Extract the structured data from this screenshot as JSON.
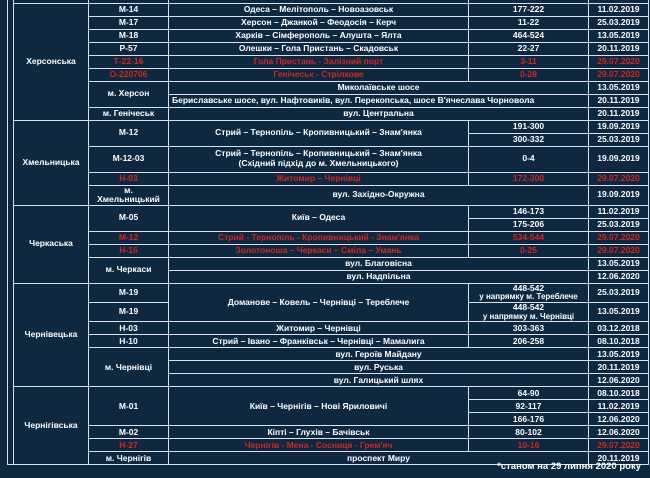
{
  "colors": {
    "background": "#0e2840",
    "table_border": "#d9e2ec",
    "text": "#ffffff",
    "highlight_red": "#d6251c"
  },
  "footer": {
    "note": "*станом на 29 липня 2020 року"
  },
  "sections": [
    {
      "region": "Херсонська",
      "rows": [
        {
          "code": "М-14",
          "route": "Одеса – Мелітополь – Новоазовськ",
          "km": "177-222",
          "date": "11.02.2019"
        },
        {
          "code": "М-17",
          "route": "Херсон – Джанкой – Феодосія – Керч",
          "km": "11-22",
          "date": "25.03.2019"
        },
        {
          "code": "М-18",
          "route": "Харків – Сімферополь – Алушта – Ялта",
          "km": "464-524",
          "date": "13.05.2019"
        },
        {
          "code": "Р-57",
          "route": "Олешки – Гола Пристань – Скадовськ",
          "km": "22-27",
          "date": "20.11.2019"
        },
        {
          "code": "Т-22-16",
          "route": "Гола Пристань - Залізний порт",
          "km": "3-11",
          "date": "29.07.2020",
          "highlight": true
        },
        {
          "code": "О-220706",
          "route": "Генічеськ - Стрілкове",
          "km": "0-28",
          "date": "29.07.2020",
          "highlight": true
        },
        {
          "code": "м. Херсон",
          "route": "Миколаївське шосе",
          "date": "13.05.2019"
        },
        {
          "route": "Бериславське шосе, вул. Нафтовиків, вул. Перекопська, шосе В'ячеслава Чорновола",
          "date": "20.11.2019"
        },
        {
          "code": "м. Генічеськ",
          "route": "вул. Центральна",
          "date": "20.11.2019"
        }
      ]
    },
    {
      "region": "Хмельницька",
      "rows": [
        {
          "code": "М-12",
          "route": "Стрий – Тернопіль – Кропивницький – Знам'янка",
          "km": "191-300",
          "date": "19.09.2019"
        },
        {
          "km": "300-332",
          "date": "25.03.2019"
        },
        {
          "code": "М-12-03",
          "route": "Стрий – Тернопіль – Кропивницький – Знам'янка",
          "route2": "(Східний підхід до м. Хмельницького)",
          "km": "0-4",
          "date": "19.09.2019"
        },
        {
          "code": "Н-03",
          "route": "Житомир – Чернівці",
          "km": "172-300",
          "date": "29.07.2020",
          "highlight": true
        },
        {
          "code": "м. Хмельницький",
          "route": "вул. Західно-Окружна",
          "date": "19.09.2019"
        }
      ]
    },
    {
      "region": "Черкаська",
      "rows": [
        {
          "code": "М-05",
          "route": "Київ – Одеса",
          "km": "146-173",
          "date": "11.02.2019"
        },
        {
          "km": "175-206",
          "date": "25.03.2019"
        },
        {
          "code": "М-12",
          "route": "Стрий - Тернопіль - Кропивницький - Знам'янка",
          "km": "534-544",
          "date": "29.07.2020",
          "highlight": true
        },
        {
          "code": "Н-16",
          "route": "Золотоноша – Черкаси – Сміла – Умань",
          "km": "0-25",
          "date": "29.07.2020",
          "highlight": true
        },
        {
          "code": "м. Черкаси",
          "route": "вул. Благовісна",
          "date": "13.05.2019"
        },
        {
          "route": "вул. Надпільна",
          "date": "12.06.2020"
        }
      ]
    },
    {
      "region": "Чернівецька",
      "rows": [
        {
          "code": "М-19",
          "route": "Доманове – Ковель – Чернівці – Тереблече",
          "km": "448-542",
          "km2": "у напрямку м. Тереблече",
          "date": "25.03.2019"
        },
        {
          "code": "М-19",
          "km": "448-542",
          "km2": "у напрямку м. Чернівці",
          "date": "13.05.2019"
        },
        {
          "code": "Н-03",
          "route": "Житомир – Чернівці",
          "km": "303-363",
          "date": "03.12.2018"
        },
        {
          "code": "Н-10",
          "route": "Стрий – Івано – Франківськ – Чернівці – Мамалига",
          "km": "206-258",
          "date": "08.10.2018"
        },
        {
          "code": "м. Чернівці",
          "route": "вул. Героїв Майдану",
          "date": "13.05.2019"
        },
        {
          "route": "вул. Руська",
          "date": "20.11.2019"
        },
        {
          "route": "вул. Галицький шлях",
          "date": "12.06.2020"
        }
      ]
    },
    {
      "region": "Чернігівська",
      "rows": [
        {
          "code": "М-01",
          "route": "Київ – Чернігів – Нові Яриловичі",
          "km": "64-90",
          "date": "08.10.2018"
        },
        {
          "km": "92-117",
          "date": "11.02.2019"
        },
        {
          "km": "166-176",
          "date": "12.06.2020"
        },
        {
          "code": "М-02",
          "route": "Кіпті – Глухів – Бачівськ",
          "km": "80-102",
          "date": "12.06.2020"
        },
        {
          "code": "Н-27",
          "route": "Чернігів - Мена - Сосниця - Грем'яч",
          "km": "10-16",
          "date": "29.07.2020",
          "highlight": true
        },
        {
          "code": "м. Чернігів",
          "route": "проспект Миру",
          "date": "20.11.2019"
        }
      ]
    }
  ]
}
